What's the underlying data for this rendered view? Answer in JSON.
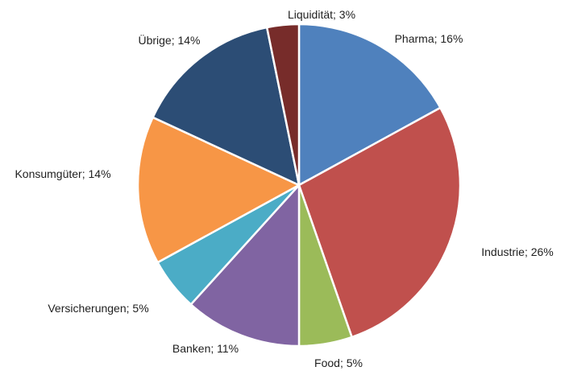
{
  "chart_data": {
    "type": "pie",
    "title": "",
    "start_angle_deg": 0,
    "direction": "clockwise",
    "legend": "none",
    "slices": [
      {
        "label": "Pharma; 16%",
        "name": "Pharma",
        "value": 16,
        "color": "#4F81BD"
      },
      {
        "label": "Industrie; 26%",
        "name": "Industrie",
        "value": 26,
        "color": "#C0504D"
      },
      {
        "label": "Food; 5%",
        "name": "Food",
        "value": 5,
        "color": "#9BBB59"
      },
      {
        "label": "Banken; 11%",
        "name": "Banken",
        "value": 11,
        "color": "#8064A2"
      },
      {
        "label": "Versicherungen; 5%",
        "name": "Versicherungen",
        "value": 5,
        "color": "#4BACC6"
      },
      {
        "label": "Konsumgüter; 14%",
        "name": "Konsumgüter",
        "value": 14,
        "color": "#F79646"
      },
      {
        "label": "Übrige; 14%",
        "name": "Übrige",
        "value": 14,
        "color": "#2C4D75"
      },
      {
        "label": "Liquidität; 3%",
        "name": "Liquidität",
        "value": 3,
        "color": "#772C2A"
      }
    ]
  }
}
